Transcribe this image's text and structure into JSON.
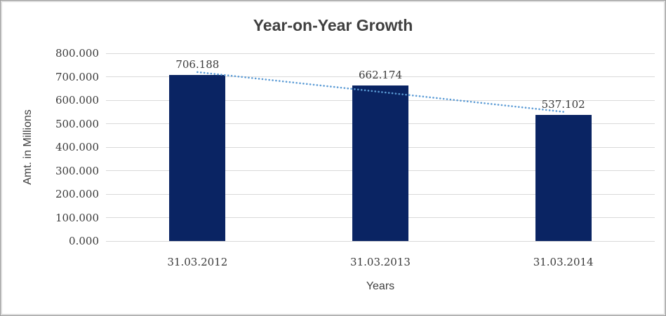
{
  "chart_data": {
    "type": "bar",
    "title": "Year-on-Year Growth",
    "xlabel": "Years",
    "ylabel": "Amt. in Millions",
    "categories": [
      "31.03.2012",
      "31.03.2013",
      "31.03.2014"
    ],
    "values": [
      706.188,
      662.174,
      537.102
    ],
    "value_labels": [
      "706.188",
      "662.174",
      "537.102"
    ],
    "ylim": [
      0,
      800
    ],
    "ytick_labels": [
      "0.000",
      "100.000",
      "200.000",
      "300.000",
      "400.000",
      "500.000",
      "600.000",
      "700.000",
      "800.000"
    ],
    "grid": true,
    "legend": "none",
    "trendline": {
      "type": "linear",
      "style": "dotted"
    }
  },
  "colors": {
    "bar": "#0a2463",
    "trendline": "#5b9bd5",
    "gridline": "#d9d9d9",
    "title_text": "#404040",
    "axis_text": "#3a3a3a"
  }
}
